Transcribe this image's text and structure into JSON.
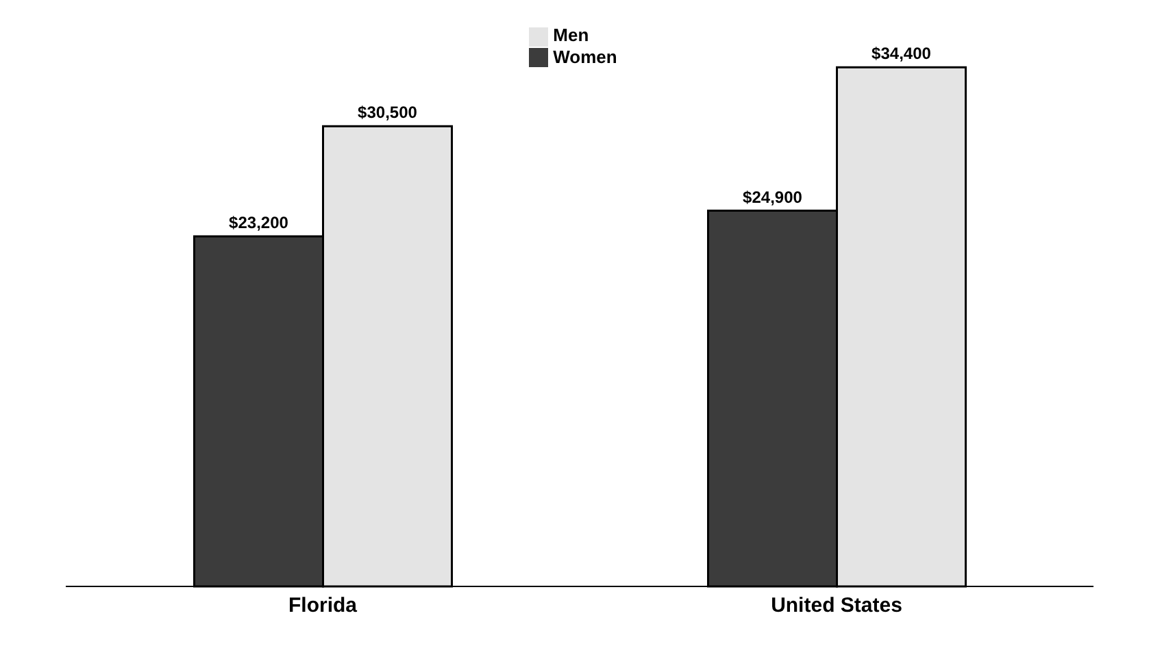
{
  "chart_data": {
    "type": "bar",
    "categories": [
      "Florida",
      "United States"
    ],
    "series": [
      {
        "name": "Women",
        "color": "#3c3c3c",
        "values": [
          23200,
          24900
        ],
        "value_labels": [
          "$23,200",
          "$24,900"
        ]
      },
      {
        "name": "Men",
        "color": "#e4e4e4",
        "values": [
          30500,
          34400
        ],
        "value_labels": [
          "$30,500",
          "$34,400"
        ]
      }
    ],
    "legend": "top",
    "grid": false
  }
}
